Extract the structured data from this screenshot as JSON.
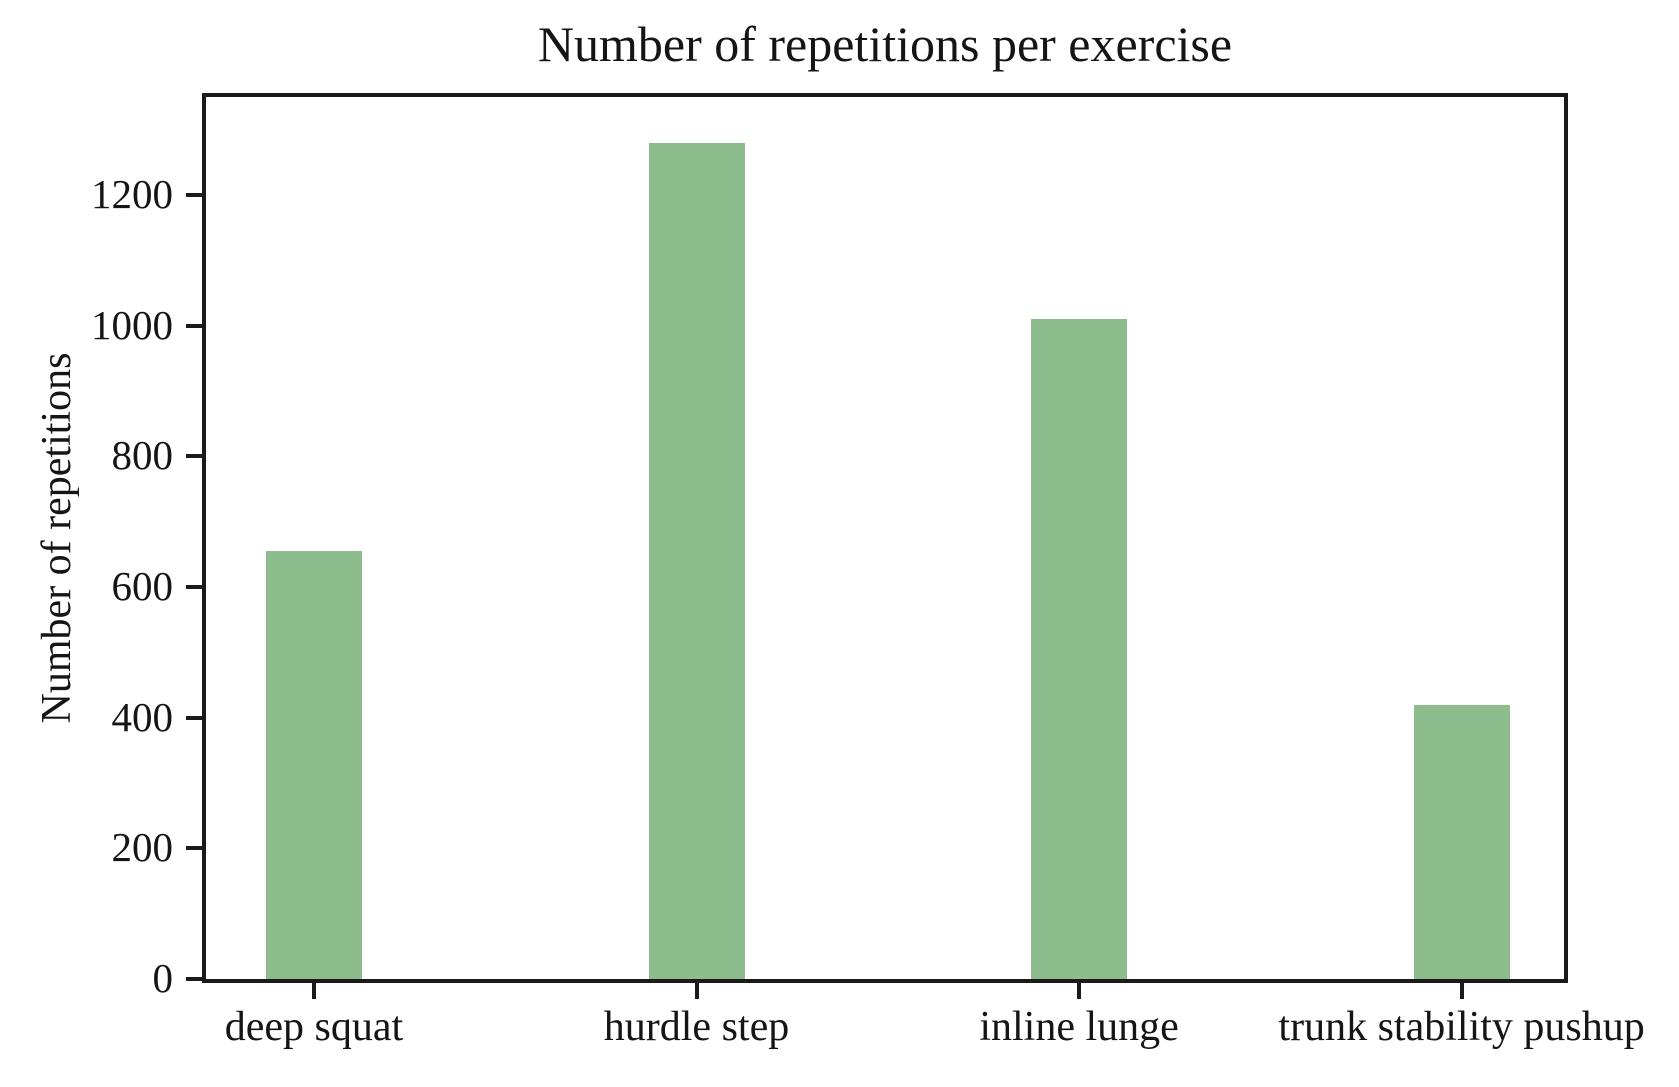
{
  "chart_data": {
    "type": "bar",
    "title": "Number of repetitions per exercise",
    "xlabel": "",
    "ylabel": "Number of repetitions",
    "categories": [
      "deep squat",
      "hurdle step",
      "inline lunge",
      "trunk stability pushup"
    ],
    "values": [
      655,
      1280,
      1010,
      420
    ],
    "yticks": [
      0,
      200,
      400,
      600,
      800,
      1000,
      1200
    ],
    "ylim": [
      0,
      1350
    ],
    "grid": false,
    "legend": false,
    "bar_color": "#8dbc8d",
    "axis_color": "#1a1a1a",
    "text_color": "#151515",
    "background_color": "#ffffff"
  }
}
